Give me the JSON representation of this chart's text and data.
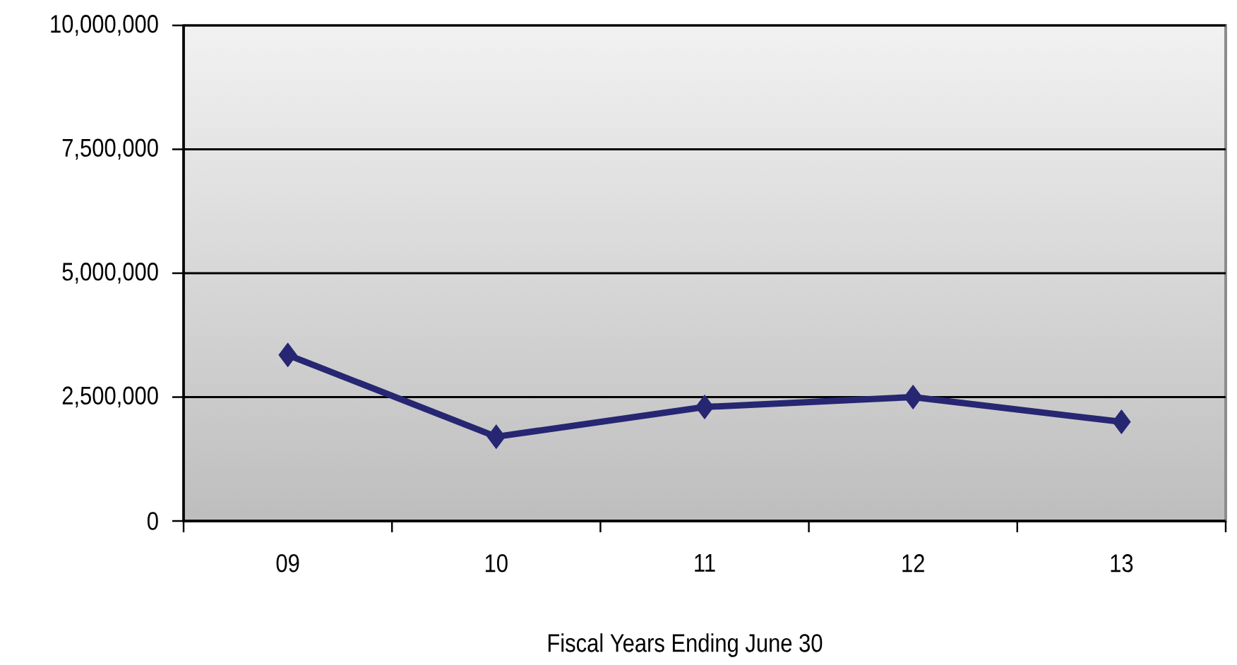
{
  "chart_data": {
    "type": "line",
    "xlabel": "Fiscal Years Ending June 30",
    "categories": [
      "09",
      "10",
      "11",
      "12",
      "13"
    ],
    "series": [
      {
        "color": "#262673",
        "values": [
          3350000,
          1700000,
          2300000,
          2500000,
          2000000
        ]
      }
    ],
    "ylim": [
      0,
      10000000
    ],
    "yticks": [
      0,
      {
        "value": 2500000,
        "label": "2,500,000"
      },
      {
        "value": 5000000,
        "label": "5,000,000"
      },
      {
        "value": 7500000,
        "label": "7,500,000"
      },
      {
        "value": 10000000,
        "label": "10,000,000"
      }
    ],
    "grid": "y",
    "marker": "diamond",
    "line_style": "solid",
    "legend": false
  }
}
